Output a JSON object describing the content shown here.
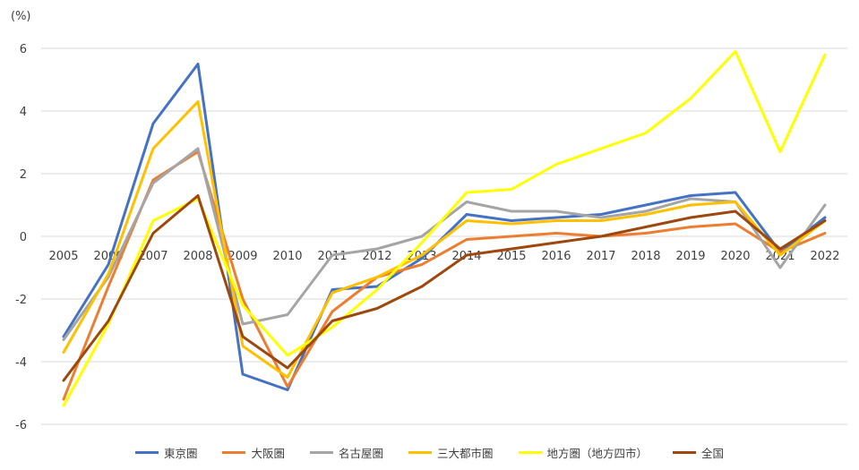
{
  "chart_data": {
    "type": "line",
    "unit_label": "(%)",
    "x": [
      "2005",
      "2006",
      "2007",
      "2008",
      "2009",
      "2010",
      "2011",
      "2012",
      "2013",
      "2014",
      "2015",
      "2016",
      "2017",
      "2018",
      "2019",
      "2020",
      "2021",
      "2022"
    ],
    "ylim": [
      -6,
      6
    ],
    "yticks": [
      -6,
      -4,
      -2,
      0,
      2,
      4,
      6
    ],
    "grid": true,
    "legend_position": "bottom",
    "series": [
      {
        "name": "東京圏",
        "color": "#4472C4",
        "values": [
          -3.2,
          -0.9,
          3.6,
          5.5,
          -4.4,
          -4.9,
          -1.7,
          -1.6,
          -0.7,
          0.7,
          0.5,
          0.6,
          0.7,
          1.0,
          1.3,
          1.4,
          -0.5,
          0.6
        ]
      },
      {
        "name": "大阪圏",
        "color": "#ED7D31",
        "values": [
          -5.2,
          -1.6,
          1.8,
          2.7,
          -2.0,
          -4.8,
          -2.4,
          -1.3,
          -0.9,
          -0.1,
          0.0,
          0.1,
          0.0,
          0.1,
          0.3,
          0.4,
          -0.5,
          0.1
        ]
      },
      {
        "name": "名古屋圏",
        "color": "#A5A5A5",
        "values": [
          -3.3,
          -1.3,
          1.7,
          2.8,
          -2.8,
          -2.5,
          -0.6,
          -0.4,
          0.0,
          1.1,
          0.8,
          0.8,
          0.6,
          0.8,
          1.2,
          1.1,
          -1.0,
          1.0
        ]
      },
      {
        "name": "三大都市圏",
        "color": "#FFC000",
        "values": [
          -3.7,
          -1.2,
          2.8,
          4.3,
          -3.5,
          -4.5,
          -1.8,
          -1.3,
          -0.6,
          0.5,
          0.4,
          0.5,
          0.5,
          0.7,
          1.0,
          1.1,
          -0.6,
          0.5
        ]
      },
      {
        "name": "地方圏（地方四市）",
        "color": "#FFFF00",
        "values": [
          -5.4,
          -2.8,
          0.5,
          1.2,
          -2.2,
          -3.8,
          -2.9,
          -1.7,
          -0.2,
          1.4,
          1.5,
          2.3,
          2.8,
          3.3,
          4.4,
          5.9,
          2.7,
          5.8
        ]
      },
      {
        "name": "全国",
        "color": "#9E480E",
        "values": [
          -4.6,
          -2.7,
          0.1,
          1.3,
          -3.2,
          -4.2,
          -2.7,
          -2.3,
          -1.6,
          -0.6,
          -0.4,
          -0.2,
          0.0,
          0.3,
          0.6,
          0.8,
          -0.4,
          0.5
        ]
      }
    ]
  }
}
